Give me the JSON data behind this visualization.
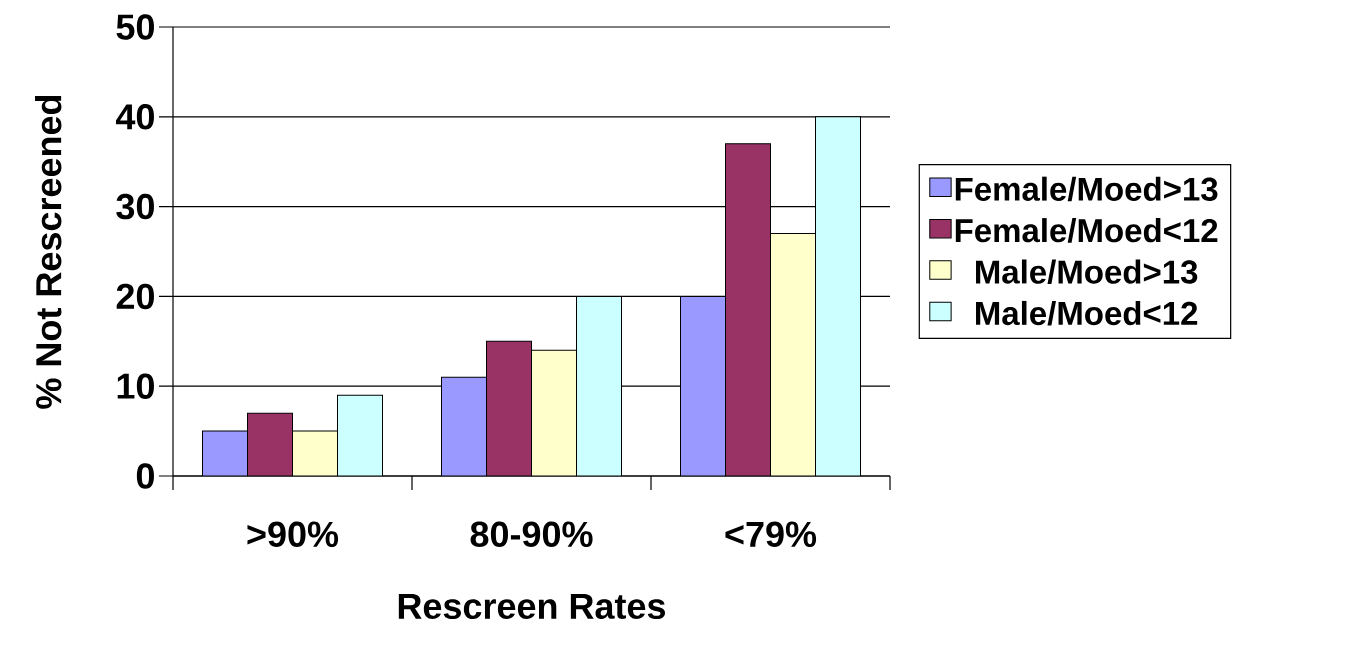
{
  "chart_data": {
    "type": "bar",
    "xlabel": "Rescreen Rates",
    "ylabel": "% Not Rescreened",
    "categories": [
      ">90%",
      "80-90%",
      "<79%"
    ],
    "series": [
      {
        "name": "Female/Moed>13",
        "color": "#9999ff",
        "values": [
          5,
          11,
          20
        ]
      },
      {
        "name": "Female/Moed<12",
        "color": "#993366",
        "values": [
          7,
          15,
          37
        ]
      },
      {
        "name": "Male/Moed>13",
        "color": "#ffffcc",
        "values": [
          5,
          14,
          27
        ]
      },
      {
        "name": "Male/Moed<12",
        "color": "#ccffff",
        "values": [
          9,
          20,
          40
        ]
      }
    ],
    "ylim": [
      0,
      50
    ],
    "yticks": [
      0,
      10,
      20,
      30,
      40,
      50
    ],
    "grid": "y",
    "legend": "right"
  }
}
